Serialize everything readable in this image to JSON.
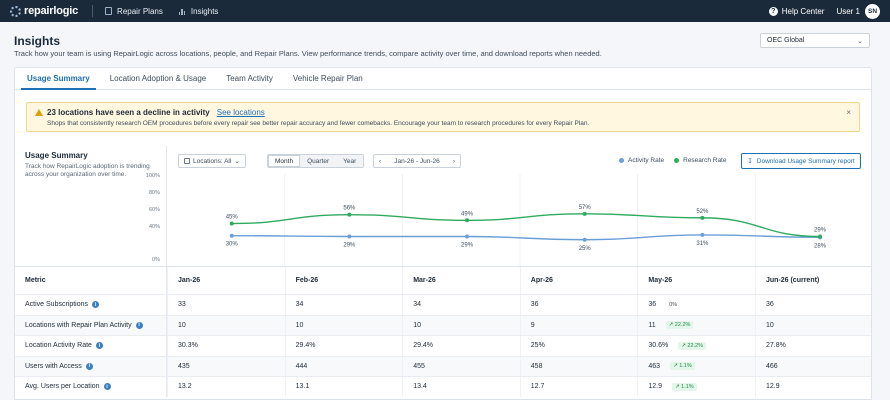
{
  "nav": {
    "logo_text": "repairlogic",
    "items": [
      {
        "label": "Repair Plans",
        "icon": "clipboard-icon"
      },
      {
        "label": "Insights",
        "icon": "bar-chart-icon"
      }
    ],
    "help_label": "Help Center",
    "user_label": "User 1",
    "user_initials": "SN"
  },
  "header": {
    "title": "Insights",
    "subtitle": "Track how your team is using RepairLogic across locations, people, and Repair Plans. View performance trends, compare activity over time, and download reports when needed.",
    "org_select": "OEC Global"
  },
  "tabs": [
    {
      "label": "Usage Summary",
      "active": true
    },
    {
      "label": "Location Adoption & Usage",
      "active": false
    },
    {
      "label": "Team Activity",
      "active": false
    },
    {
      "label": "Vehicle Repair Plan",
      "active": false
    }
  ],
  "alert": {
    "title": "23 locations have seen a decline in activity",
    "link": "See locations",
    "body": "Shops that consistently research OEM procedures before every repair see better repair accuracy and fewer comebacks. Encourage your team to research procedures for every Repair Plan.",
    "close": "×"
  },
  "summary": {
    "title": "Usage Summary",
    "description": "Track how RepairLogic adoption is trending across your organization over time."
  },
  "controls": {
    "location_filter": "Locations: All",
    "periods": [
      {
        "label": "Month",
        "active": true
      },
      {
        "label": "Quarter",
        "active": false
      },
      {
        "label": "Year",
        "active": false
      }
    ],
    "date_range": "Jan-26 - Jun-26",
    "download_label": "Download Usage Summary report"
  },
  "colors": {
    "activity": "#6a9fd8",
    "research": "#2eab5f"
  },
  "chart_data": {
    "type": "line",
    "x": [
      "Jan-26",
      "Feb-26",
      "Mar-26",
      "Apr-26",
      "May-26",
      "Jun-26"
    ],
    "y_ticks": [
      "100%",
      "80%",
      "60%",
      "40%",
      "0%"
    ],
    "ylim": [
      0,
      100
    ],
    "legend_position": "top-right",
    "series": [
      {
        "name": "Activity Rate",
        "values": [
          30,
          29,
          29,
          25,
          31,
          28
        ],
        "labels": [
          "30%",
          "29%",
          "29%",
          "25%",
          "31%",
          "28%"
        ]
      },
      {
        "name": "Research Rate",
        "values": [
          45,
          56,
          49,
          57,
          52,
          29
        ],
        "labels": [
          "45%",
          "56%",
          "49%",
          "57%",
          "52%",
          "29%"
        ]
      }
    ]
  },
  "table": {
    "metric_header": "Metric",
    "columns": [
      "Jan-26",
      "Feb-26",
      "Mar-26",
      "Apr-26",
      "May-26",
      "Jun-26 (current)"
    ],
    "rows": [
      {
        "metric": "Active Subscriptions",
        "values": [
          "33",
          "34",
          "34",
          "36",
          "36",
          "36"
        ],
        "delta": {
          "index": 4,
          "text": "0%",
          "kind": "flat"
        }
      },
      {
        "metric": "Locations with Repair Plan Activity",
        "values": [
          "10",
          "10",
          "10",
          "9",
          "11",
          "10"
        ],
        "delta": {
          "index": 4,
          "text": "22.2%",
          "kind": "up"
        }
      },
      {
        "metric": "Location Activity Rate",
        "values": [
          "30.3%",
          "29.4%",
          "29.4%",
          "25%",
          "30.6%",
          "27.8%"
        ],
        "delta": {
          "index": 4,
          "text": "22.2%",
          "kind": "up"
        }
      },
      {
        "metric": "Users with Access",
        "values": [
          "435",
          "444",
          "455",
          "458",
          "463",
          "466"
        ],
        "delta": {
          "index": 4,
          "text": "1.1%",
          "kind": "up"
        }
      },
      {
        "metric": "Avg. Users per Location",
        "values": [
          "13.2",
          "13.1",
          "13.4",
          "12.7",
          "12.9",
          "12.9"
        ],
        "delta": {
          "index": 4,
          "text": "1.1%",
          "kind": "up"
        }
      }
    ]
  }
}
